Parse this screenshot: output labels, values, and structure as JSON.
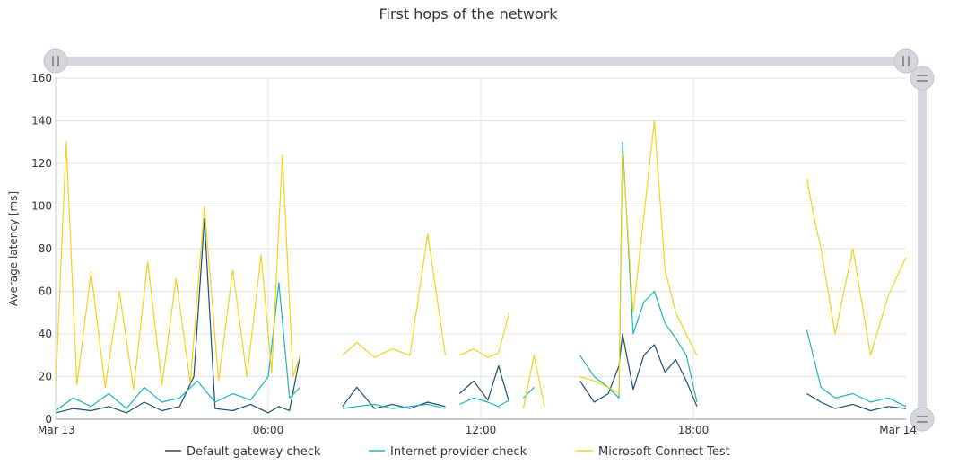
{
  "chart_data": {
    "type": "line",
    "title": "First hops of the network",
    "xlabel": "",
    "ylabel": "Average latency [ms]",
    "ylim": [
      0,
      160
    ],
    "yticks": [
      "0",
      "20",
      "40",
      "60",
      "80",
      "100",
      "120",
      "140",
      "160"
    ],
    "xticks": [
      "Mar 13",
      "06:00",
      "12:00",
      "18:00",
      "Mar 14"
    ],
    "x_unit": "hours since Mar 13 00:00",
    "xlim": [
      0,
      24
    ],
    "grid": true,
    "legend_position": "bottom",
    "series": [
      {
        "name": "Default gateway check",
        "color": "#1b4f6b",
        "segments": [
          {
            "x": [
              0,
              0.5,
              1,
              1.5,
              2,
              2.5,
              3,
              3.5,
              3.9,
              4.2,
              4.5,
              5,
              5.5,
              6,
              6.3,
              6.6,
              6.9
            ],
            "y": [
              3,
              5,
              4,
              6,
              3,
              8,
              4,
              6,
              20,
              94,
              5,
              4,
              7,
              3,
              6,
              4,
              30
            ]
          },
          {
            "x": [
              8.1,
              8.5,
              9,
              9.5,
              10,
              10.5,
              11
            ],
            "y": [
              6,
              15,
              5,
              7,
              5,
              8,
              6
            ]
          },
          {
            "x": [
              11.4,
              11.8,
              12.2,
              12.5,
              12.8
            ],
            "y": [
              12,
              18,
              9,
              25,
              8
            ]
          },
          {
            "x": [
              14.8,
              15.2,
              15.6,
              15.9,
              16,
              16.3,
              16.6,
              16.9,
              17.2,
              17.5,
              17.8,
              18.1
            ],
            "y": [
              18,
              8,
              12,
              25,
              40,
              14,
              30,
              35,
              22,
              28,
              18,
              6
            ]
          },
          {
            "x": [
              21.2,
              21.6,
              22,
              22.5,
              23,
              23.5,
              24
            ],
            "y": [
              12,
              8,
              5,
              7,
              4,
              6,
              5
            ]
          }
        ]
      },
      {
        "name": "Internet provider check",
        "color": "#1fb5b5",
        "segments": [
          {
            "x": [
              0,
              0.5,
              1,
              1.5,
              2,
              2.5,
              3,
              3.5,
              4,
              4.5,
              5,
              5.5,
              6,
              6.3,
              6.6,
              6.9
            ],
            "y": [
              4,
              10,
              6,
              12,
              5,
              15,
              8,
              10,
              18,
              8,
              12,
              9,
              20,
              64,
              10,
              15
            ]
          },
          {
            "x": [
              8.1,
              8.5,
              9,
              9.5,
              10,
              10.5,
              11
            ],
            "y": [
              5,
              6,
              7,
              5,
              6,
              7,
              5
            ]
          },
          {
            "x": [
              11.4,
              11.8,
              12.2,
              12.5,
              12.8
            ],
            "y": [
              7,
              10,
              8,
              6,
              9
            ]
          },
          {
            "x": [
              13.2,
              13.5
            ],
            "y": [
              10,
              15
            ]
          },
          {
            "x": [
              14.8,
              15.2,
              15.6,
              15.9,
              16,
              16.3,
              16.6,
              16.9,
              17.2,
              17.5,
              17.8,
              18.1
            ],
            "y": [
              30,
              20,
              15,
              10,
              130,
              40,
              55,
              60,
              45,
              38,
              30,
              8
            ]
          },
          {
            "x": [
              21.2,
              21.6,
              22,
              22.5,
              23,
              23.5,
              24
            ],
            "y": [
              42,
              15,
              10,
              12,
              8,
              10,
              6
            ]
          }
        ]
      },
      {
        "name": "Microsoft Connect Test",
        "color": "#f2d21b",
        "segments": [
          {
            "x": [
              0,
              0.3,
              0.6,
              1,
              1.4,
              1.8,
              2.2,
              2.6,
              3,
              3.4,
              3.8,
              4.2,
              4.6,
              5,
              5.4,
              5.8,
              6.1,
              6.4,
              6.7,
              6.9
            ],
            "y": [
              14,
              130,
              16,
              69,
              15,
              60,
              14,
              74,
              16,
              66,
              17,
              100,
              18,
              70,
              20,
              77,
              22,
              124,
              20,
              30
            ]
          },
          {
            "x": [
              8.1,
              8.5,
              9,
              9.5,
              10,
              10.5,
              11
            ],
            "y": [
              30,
              36,
              29,
              33,
              30,
              87,
              30
            ]
          },
          {
            "x": [
              11.4,
              11.8,
              12.2,
              12.5,
              12.8
            ],
            "y": [
              30,
              33,
              29,
              31,
              50
            ]
          },
          {
            "x": [
              13.2,
              13.5,
              13.8
            ],
            "y": [
              5,
              30,
              6
            ]
          },
          {
            "x": [
              14.8,
              15.2,
              15.6,
              15.9,
              16,
              16.3,
              16.6,
              16.9,
              17.2,
              17.5,
              17.8,
              18.1
            ],
            "y": [
              20,
              18,
              15,
              12,
              125,
              50,
              95,
              140,
              70,
              50,
              40,
              30
            ]
          },
          {
            "x": [
              21.2,
              21.4,
              21.6,
              22,
              22.5,
              23,
              23.5,
              24
            ],
            "y": [
              113,
              95,
              80,
              40,
              80,
              30,
              58,
              76
            ]
          }
        ]
      }
    ]
  }
}
